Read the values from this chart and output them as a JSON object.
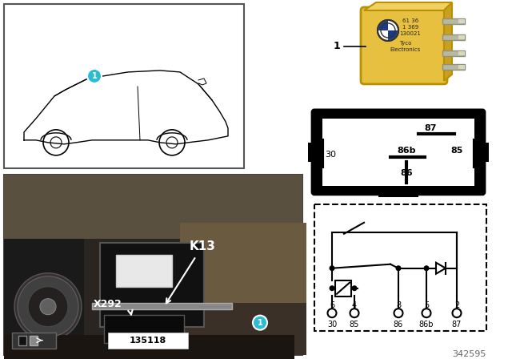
{
  "bg_color": "#ffffff",
  "part_number": "342595",
  "photo_label": "135118",
  "relay_label": "1",
  "k13_label": "K13",
  "x292_label": "X292",
  "pin_diagram_pins": [
    "6",
    "4",
    "8",
    "5",
    "2"
  ],
  "pin_diagram_labels": [
    "30",
    "85",
    "86",
    "86b",
    "87"
  ],
  "relay_color": "#e8c040",
  "cyan_color": "#2bbcd4",
  "gray_bg": "#b0b0b0"
}
